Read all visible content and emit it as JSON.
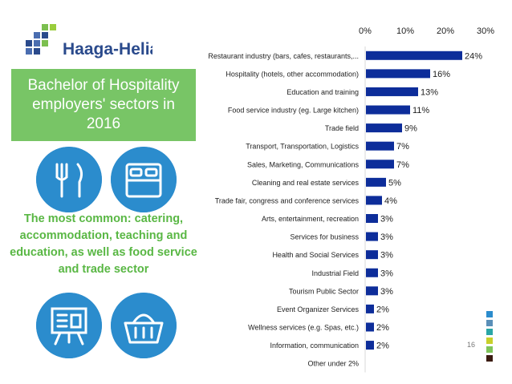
{
  "logo": {
    "text": "Haaga-Helia",
    "colors": [
      "#2a4a8c",
      "#4a6db0",
      "#7bbf4f",
      "#9acd3c"
    ]
  },
  "title": "Bachelor of Hospitality employers' sectors in 2016",
  "summary": "The most common: catering, accommodation, teaching and education, as well as food service and trade sector",
  "icons": [
    "cutlery-icon",
    "bed-icon",
    "presentation-board-icon",
    "shopping-basket-icon"
  ],
  "page_number": "16",
  "legend_squares": [
    "#2b8ccd",
    "#5a8fb8",
    "#2aa6a6",
    "#c8d02a",
    "#7fc45a",
    "#3a1a10"
  ],
  "chart_data": {
    "type": "bar",
    "orientation": "horizontal",
    "categories": [
      "Restaurant industry (bars, cafes, restaurants,...",
      "Hospitality (hotels, other accommodation)",
      "Education and training",
      "Food service industry (eg. Large kitchen)",
      "Trade field",
      "Transport, Transportation, Logistics",
      "Sales, Marketing, Communications",
      "Cleaning and real estate services",
      "Trade fair, congress and conference services",
      "Arts, entertainment, recreation",
      "Services for business",
      "Health and Social Services",
      "Industrial Field",
      "Tourism Public Sector",
      "Event Organizer Services",
      "Wellness services (e.g. Spas, etc.)",
      "Information, communication",
      "Other under 2%"
    ],
    "values": [
      24,
      16,
      13,
      11,
      9,
      7,
      7,
      5,
      4,
      3,
      3,
      3,
      3,
      3,
      2,
      2,
      2,
      null
    ],
    "value_labels": [
      "24%",
      "16%",
      "13%",
      "11%",
      "9%",
      "7%",
      "7%",
      "5%",
      "4%",
      "3%",
      "3%",
      "3%",
      "3%",
      "3%",
      "2%",
      "2%",
      "2%",
      ""
    ],
    "xlim": [
      0,
      30
    ],
    "x_ticks": [
      "0%",
      "10%",
      "20%",
      "30%"
    ],
    "x_axis_position": "top",
    "grid": false,
    "bar_color": "#0d2d9a"
  }
}
